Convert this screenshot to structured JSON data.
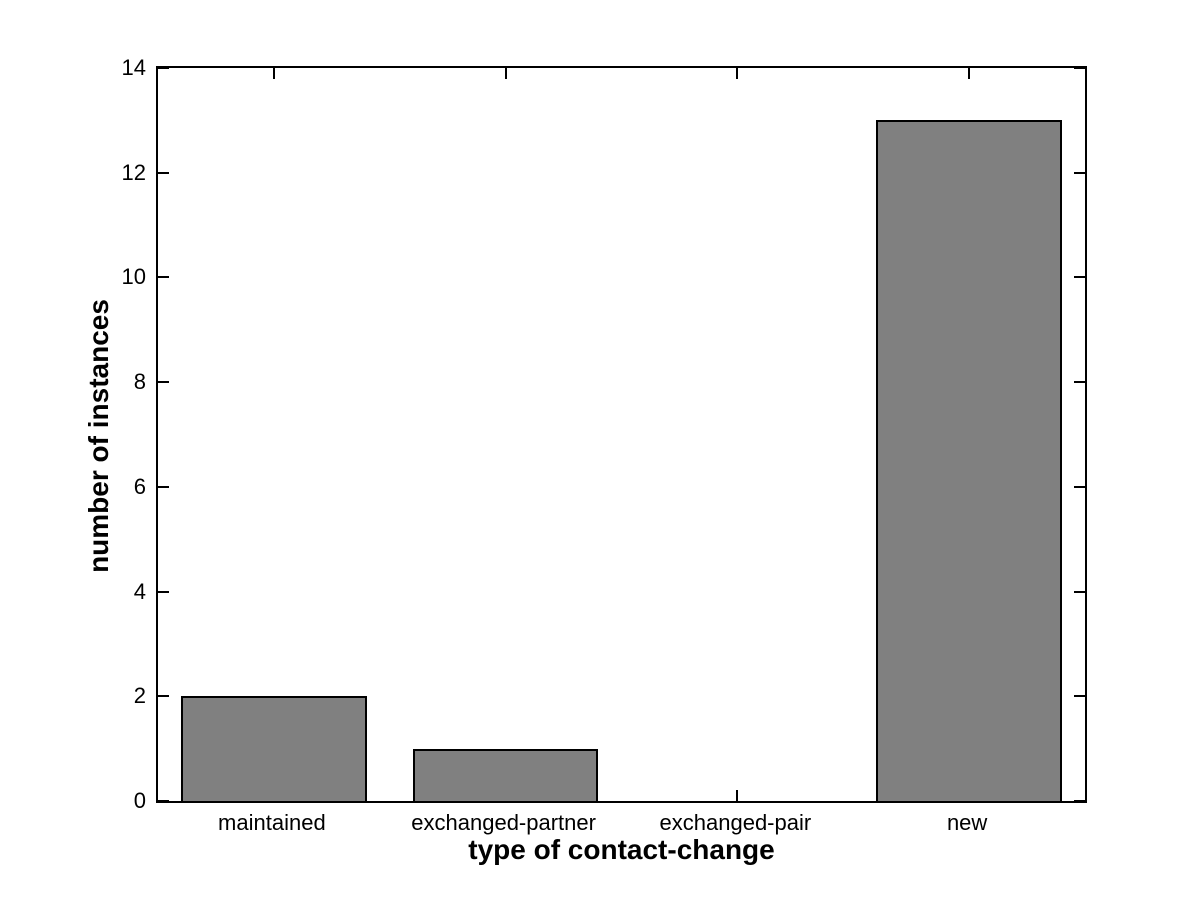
{
  "chart_data": {
    "type": "bar",
    "categories": [
      "maintained",
      "exchanged-partner",
      "exchanged-pair",
      "new"
    ],
    "values": [
      2,
      1,
      0,
      13
    ],
    "title": "",
    "xlabel": "type of contact-change",
    "ylabel": "number of instances",
    "ylim": [
      0,
      14
    ],
    "yticks": [
      0,
      2,
      4,
      6,
      8,
      10,
      12,
      14
    ],
    "ytick_labels": [
      "0",
      "2",
      "4",
      "6",
      "8",
      "10",
      "12",
      "14"
    ],
    "bar_width_fraction": 0.8,
    "bar_color": "#808080",
    "bar_edge_color": "#000000",
    "axis_color": "#000000",
    "background_color": "#ffffff",
    "grid": false,
    "legend": null,
    "tick_direction": "in"
  }
}
